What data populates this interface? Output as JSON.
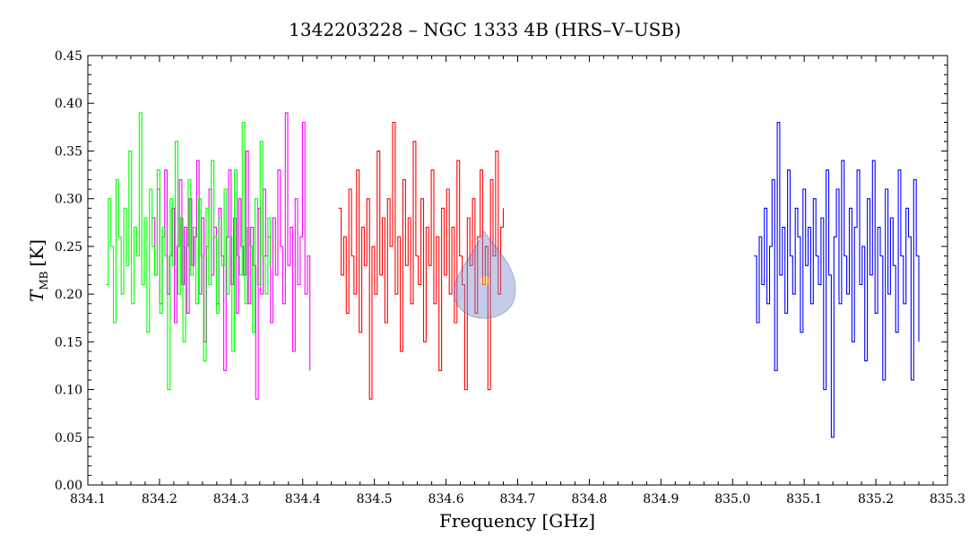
{
  "chart_data": {
    "type": "line",
    "title": "1342203228 – NGC 1333 4B (HRS–V–USB)",
    "xlabel": "Frequency [GHz]",
    "ylabel_main": "T",
    "ylabel_sub": "MB",
    "ylabel_unit": "[K]",
    "xlim": [
      834.1,
      835.3
    ],
    "ylim": [
      0.0,
      0.45
    ],
    "x_ticks": [
      "834.1",
      "834.2",
      "834.3",
      "834.4",
      "834.5",
      "834.6",
      "834.7",
      "834.8",
      "834.9",
      "835.0",
      "835.1",
      "835.2",
      "835.3"
    ],
    "y_ticks": [
      "0.00",
      "0.05",
      "0.10",
      "0.15",
      "0.20",
      "0.25",
      "0.30",
      "0.35",
      "0.40",
      "0.45"
    ],
    "grid": false,
    "series": [
      {
        "color": "#ff00ff",
        "x_range": [
          834.19,
          834.41
        ],
        "values": [
          0.28,
          0.22,
          0.31,
          0.19,
          0.26,
          0.33,
          0.2,
          0.24,
          0.29,
          0.17,
          0.25,
          0.32,
          0.21,
          0.27,
          0.18,
          0.3,
          0.23,
          0.26,
          0.34,
          0.2,
          0.28,
          0.15,
          0.25,
          0.31,
          0.22,
          0.27,
          0.19,
          0.29,
          0.24,
          0.12,
          0.26,
          0.33,
          0.21,
          0.28,
          0.18,
          0.3,
          0.25,
          0.22,
          0.35,
          0.19,
          0.27,
          0.23,
          0.09,
          0.29,
          0.2,
          0.31,
          0.24,
          0.26,
          0.17,
          0.28,
          0.22,
          0.33,
          0.25,
          0.19,
          0.39,
          0.23,
          0.27,
          0.14,
          0.3,
          0.21,
          0.26,
          0.38,
          0.2,
          0.24,
          0.12
        ]
      },
      {
        "color": "#00ff00",
        "x_range": [
          834.125,
          834.355
        ],
        "values": [
          0.21,
          0.3,
          0.25,
          0.17,
          0.32,
          0.26,
          0.2,
          0.29,
          0.23,
          0.35,
          0.19,
          0.27,
          0.24,
          0.39,
          0.21,
          0.28,
          0.16,
          0.31,
          0.25,
          0.22,
          0.33,
          0.18,
          0.27,
          0.24,
          0.1,
          0.3,
          0.23,
          0.36,
          0.2,
          0.28,
          0.15,
          0.25,
          0.32,
          0.22,
          0.27,
          0.19,
          0.3,
          0.24,
          0.13,
          0.29,
          0.21,
          0.34,
          0.26,
          0.18,
          0.28,
          0.23,
          0.31,
          0.2,
          0.26,
          0.14,
          0.33,
          0.24,
          0.22,
          0.38,
          0.19,
          0.27,
          0.25,
          0.16,
          0.3,
          0.21,
          0.36,
          0.24,
          0.2,
          0.28,
          0.23
        ]
      },
      {
        "color": "#ff0000",
        "x_range": [
          834.45,
          834.68
        ],
        "values": [
          0.29,
          0.22,
          0.26,
          0.18,
          0.31,
          0.24,
          0.2,
          0.33,
          0.16,
          0.27,
          0.23,
          0.3,
          0.09,
          0.25,
          0.2,
          0.35,
          0.22,
          0.28,
          0.17,
          0.3,
          0.25,
          0.38,
          0.2,
          0.26,
          0.14,
          0.32,
          0.23,
          0.28,
          0.19,
          0.36,
          0.24,
          0.21,
          0.3,
          0.15,
          0.27,
          0.23,
          0.33,
          0.19,
          0.26,
          0.12,
          0.29,
          0.22,
          0.31,
          0.2,
          0.27,
          0.17,
          0.34,
          0.24,
          0.21,
          0.1,
          0.28,
          0.23,
          0.3,
          0.18,
          0.26,
          0.33,
          0.21,
          0.25,
          0.1,
          0.32,
          0.24,
          0.35,
          0.2,
          0.27,
          0.29
        ]
      },
      {
        "color": "#0000ff",
        "x_range": [
          835.03,
          835.26
        ],
        "values": [
          0.24,
          0.17,
          0.26,
          0.21,
          0.29,
          0.19,
          0.25,
          0.32,
          0.12,
          0.38,
          0.22,
          0.27,
          0.18,
          0.33,
          0.24,
          0.2,
          0.29,
          0.26,
          0.16,
          0.31,
          0.23,
          0.27,
          0.19,
          0.3,
          0.24,
          0.21,
          0.28,
          0.1,
          0.33,
          0.22,
          0.05,
          0.26,
          0.31,
          0.19,
          0.34,
          0.24,
          0.2,
          0.29,
          0.15,
          0.27,
          0.33,
          0.21,
          0.25,
          0.13,
          0.3,
          0.22,
          0.34,
          0.18,
          0.27,
          0.24,
          0.11,
          0.31,
          0.2,
          0.28,
          0.23,
          0.16,
          0.33,
          0.24,
          0.19,
          0.29,
          0.26,
          0.11,
          0.32,
          0.24,
          0.15
        ]
      }
    ]
  }
}
